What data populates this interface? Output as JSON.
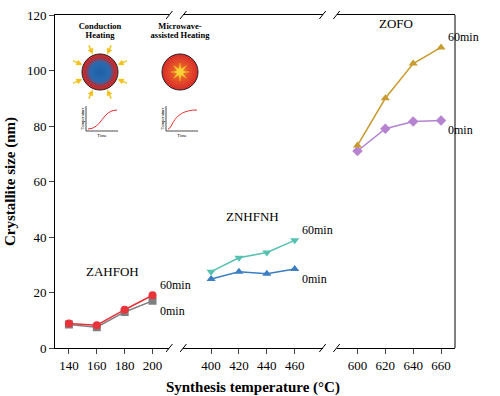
{
  "chart_data": {
    "type": "line",
    "x_label": "Synthesis temperature (°C)",
    "y_label": "Crystallite size (nm)",
    "ylim": [
      0,
      120
    ],
    "yticks": [
      0,
      20,
      40,
      60,
      80,
      100,
      120
    ],
    "panels": [
      {
        "name": "ZAHFOH",
        "xlim": [
          130,
          212
        ],
        "xticks": [
          140,
          160,
          180,
          200
        ],
        "x": [
          140,
          160,
          180,
          200
        ],
        "series": [
          {
            "name": "0min",
            "color": "#7f7f7f",
            "marker": "square",
            "values": [
              8.5,
              7.5,
              13,
              17
            ]
          },
          {
            "name": "60min",
            "color": "#e8333a",
            "marker": "circle",
            "values": [
              8.8,
              8.2,
              13.8,
              19
            ]
          }
        ]
      },
      {
        "name": "ZNHFNH",
        "xlim": [
          380,
          480
        ],
        "xticks": [
          400,
          420,
          440,
          460
        ],
        "x": [
          400,
          420,
          440,
          460
        ],
        "series": [
          {
            "name": "0min",
            "color": "#3a7fc1",
            "marker": "triangle-up",
            "values": [
              24.9,
              27.5,
              26.8,
              28.5
            ]
          },
          {
            "name": "60min",
            "color": "#56c1b0",
            "marker": "triangle-down",
            "values": [
              27.5,
              32.5,
              34.4,
              38.8
            ]
          }
        ]
      },
      {
        "name": "ZOFO",
        "xlim": [
          585,
          670
        ],
        "xticks": [
          600,
          620,
          640,
          660
        ],
        "x": [
          600,
          620,
          640,
          660
        ],
        "series": [
          {
            "name": "0min",
            "color": "#b583cf",
            "marker": "diamond",
            "values": [
              71,
              79,
              81.6,
              82
            ]
          },
          {
            "name": "60min",
            "color": "#c99a2e",
            "marker": "triangle-up",
            "values": [
              73,
              90,
              102.5,
              108.3
            ]
          }
        ]
      }
    ],
    "inset": {
      "panels": [
        {
          "title": [
            "Conduction",
            "Heating"
          ],
          "x_label": "Time",
          "y_label": "Temperature"
        },
        {
          "title": [
            "Microwave-",
            "assisted Heating"
          ],
          "x_label": "Time",
          "y_label": "Temperature"
        }
      ]
    }
  }
}
